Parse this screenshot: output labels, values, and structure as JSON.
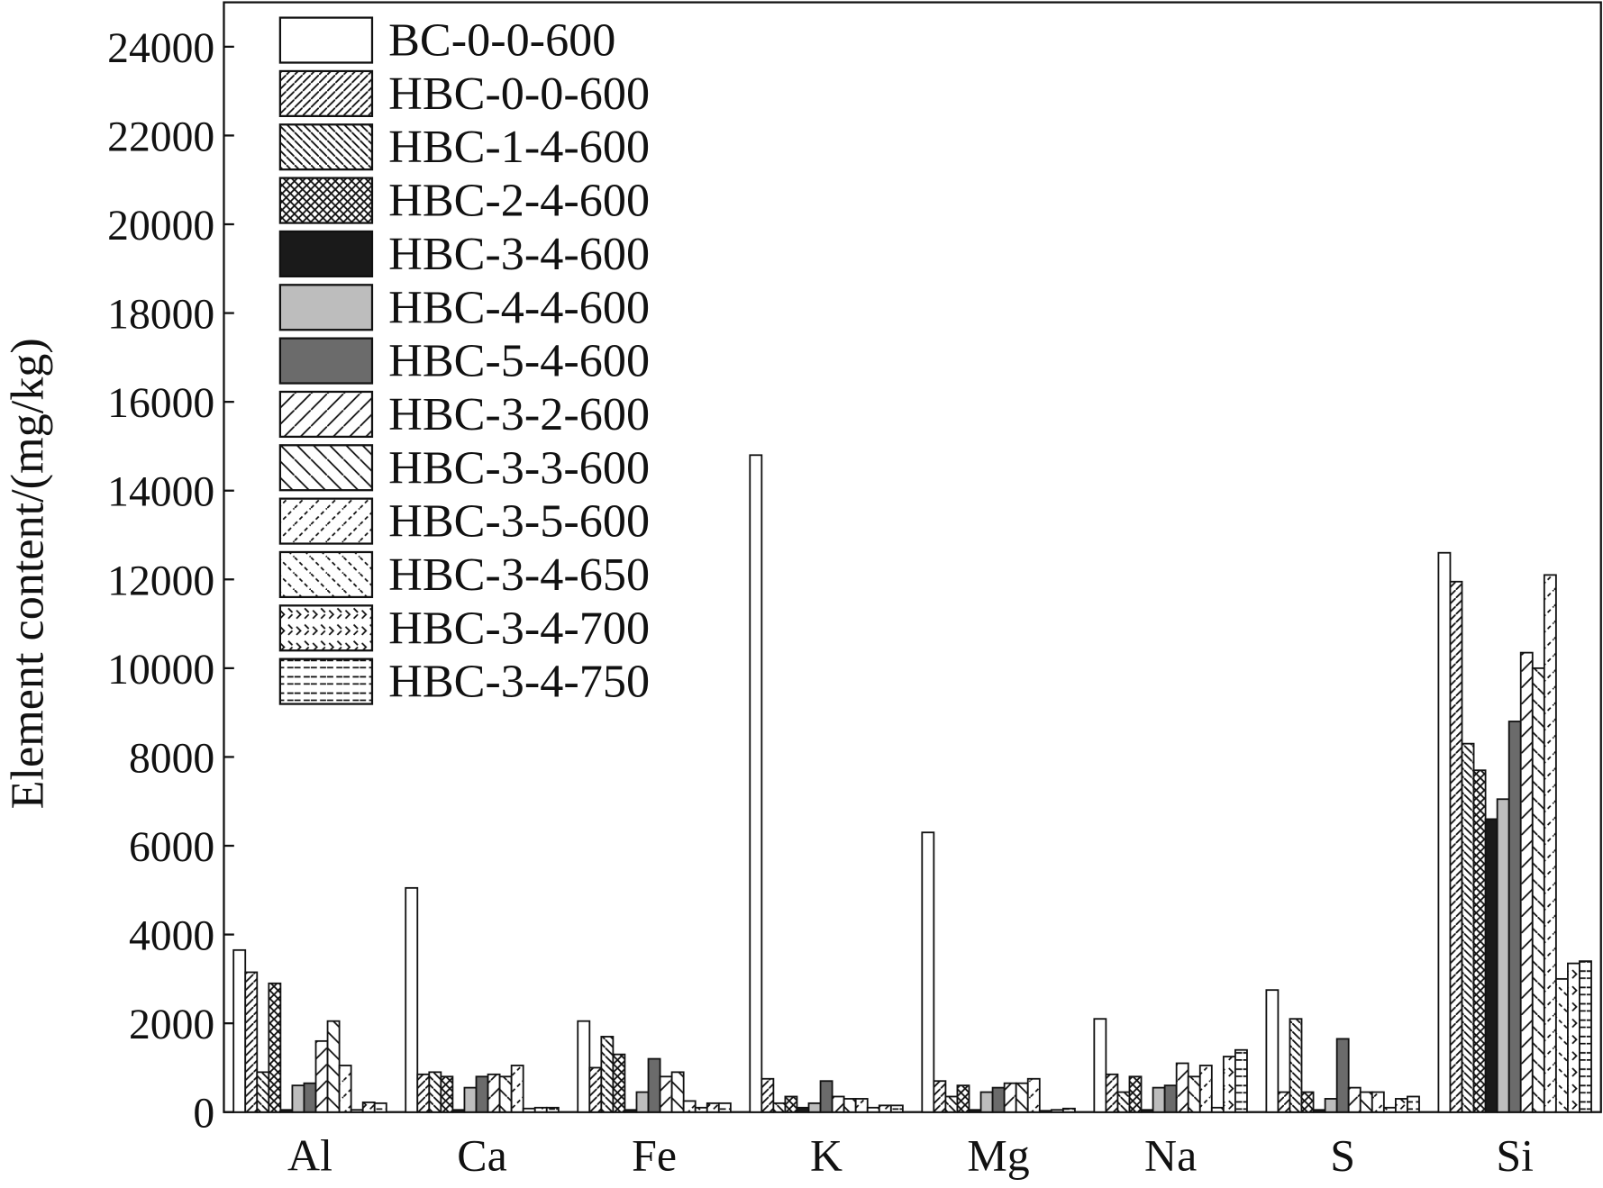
{
  "chart_data": {
    "type": "bar",
    "y_label": "Element content/(mg/kg)",
    "categories": [
      "Al",
      "Ca",
      "Fe",
      "K",
      "Mg",
      "Na",
      "S",
      "Si"
    ],
    "ylim": [
      0,
      25000
    ],
    "yticks": [
      0,
      2000,
      4000,
      6000,
      8000,
      10000,
      12000,
      14000,
      16000,
      18000,
      20000,
      22000,
      24000
    ],
    "series": [
      {
        "name": "BC-0-0-600",
        "color": "#ffffff",
        "pattern": "none",
        "values": [
          3650,
          5050,
          2050,
          14800,
          6300,
          2100,
          2750,
          12600
        ]
      },
      {
        "name": "HBC-0-0-600",
        "color": "#ffffff",
        "pattern": "slash-dense",
        "values": [
          3150,
          850,
          1000,
          750,
          700,
          850,
          450,
          11950
        ]
      },
      {
        "name": "HBC-1-4-600",
        "color": "#ffffff",
        "pattern": "backslash-dense",
        "values": [
          900,
          900,
          1700,
          200,
          350,
          450,
          2100,
          8300
        ]
      },
      {
        "name": "HBC-2-4-600",
        "color": "#ffffff",
        "pattern": "cross",
        "values": [
          2900,
          800,
          1300,
          350,
          600,
          800,
          450,
          7700
        ]
      },
      {
        "name": "HBC-3-4-600",
        "color": "#1a1a1a",
        "pattern": "none",
        "values": [
          50,
          50,
          50,
          100,
          50,
          50,
          50,
          6600
        ]
      },
      {
        "name": "HBC-4-4-600",
        "color": "#bdbdbd",
        "pattern": "none",
        "values": [
          600,
          550,
          450,
          200,
          450,
          550,
          300,
          7050
        ]
      },
      {
        "name": "HBC-5-4-600",
        "color": "#6b6b6b",
        "pattern": "none",
        "values": [
          650,
          800,
          1200,
          700,
          550,
          600,
          1650,
          8800
        ]
      },
      {
        "name": "HBC-3-2-600",
        "color": "#ffffff",
        "pattern": "slash",
        "values": [
          1600,
          850,
          800,
          350,
          650,
          1100,
          550,
          10350
        ]
      },
      {
        "name": "HBC-3-3-600",
        "color": "#ffffff",
        "pattern": "backslash",
        "values": [
          2050,
          800,
          900,
          300,
          650,
          800,
          450,
          10000
        ]
      },
      {
        "name": "HBC-3-5-600",
        "color": "#ffffff",
        "pattern": "slash-dashed",
        "values": [
          1050,
          1050,
          250,
          300,
          750,
          1050,
          450,
          12100
        ]
      },
      {
        "name": "HBC-3-4-650",
        "color": "#ffffff",
        "pattern": "backslash-dashed",
        "values": [
          50,
          80,
          100,
          100,
          30,
          100,
          100,
          3000
        ]
      },
      {
        "name": "HBC-3-4-700",
        "color": "#ffffff",
        "pattern": "chevron",
        "values": [
          220,
          100,
          200,
          150,
          50,
          1250,
          300,
          3350
        ]
      },
      {
        "name": "HBC-3-4-750",
        "color": "#ffffff",
        "pattern": "hdash",
        "values": [
          200,
          100,
          200,
          150,
          80,
          1400,
          350,
          3400
        ]
      }
    ]
  }
}
